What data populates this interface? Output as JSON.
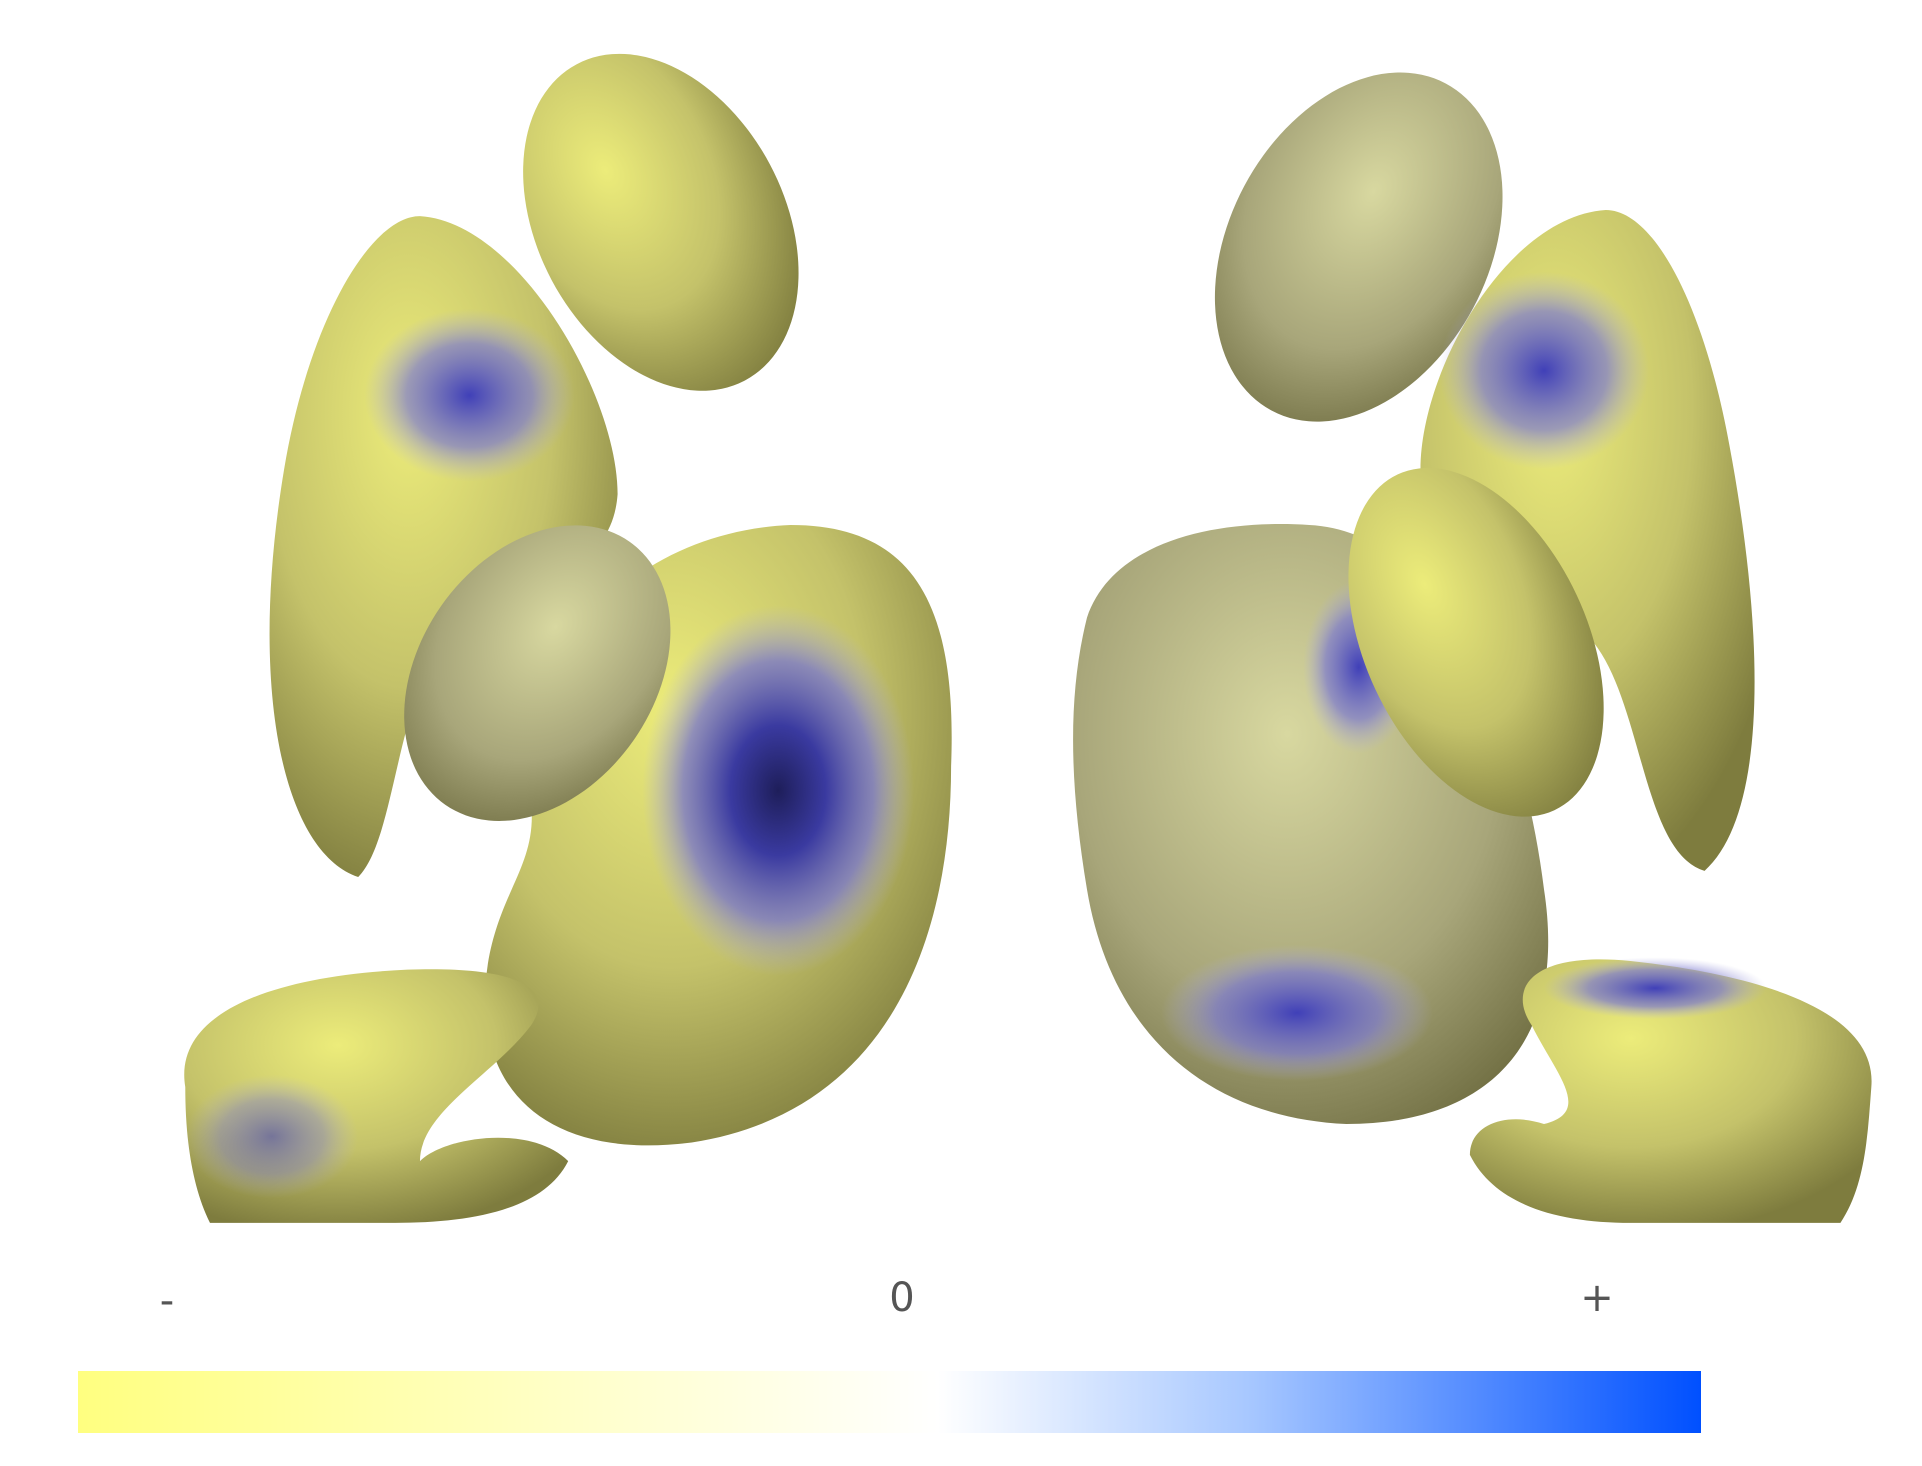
{
  "colorbar": {
    "labels": [
      "-",
      "0",
      "+"
    ]
  }
}
